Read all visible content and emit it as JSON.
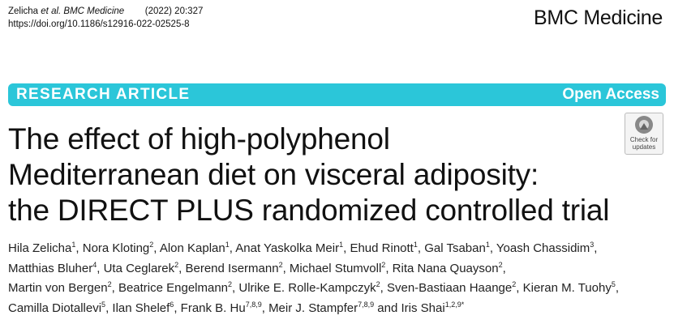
{
  "citation": {
    "author": "Zelicha",
    "journal": "et al. BMC Medicine",
    "year_volume": "(2022) 20:327",
    "doi": "https://doi.org/10.1186/s12916-022-02525-8"
  },
  "journal_logo": "BMC Medicine",
  "banner": {
    "article_type": "RESEARCH ARTICLE",
    "access": "Open Access"
  },
  "badge": "Check for updates",
  "title_lines": [
    "The effect of high-polyphenol",
    "Mediterranean diet on visceral adiposity:",
    "the DIRECT PLUS randomized controlled trial"
  ],
  "author_lines": [
    [
      {
        "name": "Hila Zelicha",
        "aff": "1",
        "after": ", "
      },
      {
        "name": "Nora Kloting",
        "aff": "2",
        "after": ", "
      },
      {
        "name": "Alon Kaplan",
        "aff": "1",
        "after": ", "
      },
      {
        "name": "Anat Yaskolka Meir",
        "aff": "1",
        "after": ", "
      },
      {
        "name": "Ehud Rinott",
        "aff": "1",
        "after": ", "
      },
      {
        "name": "Gal Tsaban",
        "aff": "1",
        "after": ", "
      },
      {
        "name": "Yoash Chassidim",
        "aff": "3",
        "after": ","
      }
    ],
    [
      {
        "name": "Matthias Bluher",
        "aff": "4",
        "after": ", "
      },
      {
        "name": "Uta Ceglarek",
        "aff": "2",
        "after": ", "
      },
      {
        "name": "Berend Isermann",
        "aff": "2",
        "after": ", "
      },
      {
        "name": "Michael Stumvoll",
        "aff": "2",
        "after": ", "
      },
      {
        "name": "Rita Nana Quayson",
        "aff": "2",
        "after": ","
      }
    ],
    [
      {
        "name": "Martin von Bergen",
        "aff": "2",
        "after": ", "
      },
      {
        "name": "Beatrice Engelmann",
        "aff": "2",
        "after": ", "
      },
      {
        "name": "Ulrike E. Rolle-Kampczyk",
        "aff": "2",
        "after": ", "
      },
      {
        "name": "Sven-Bastiaan Haange",
        "aff": "2",
        "after": ", "
      },
      {
        "name": "Kieran M. Tuohy",
        "aff": "5",
        "after": ","
      }
    ],
    [
      {
        "name": "Camilla Diotallevi",
        "aff": "5",
        "after": ", "
      },
      {
        "name": "Ilan Shelef",
        "aff": "6",
        "after": ", "
      },
      {
        "name": "Frank B. Hu",
        "aff": "7,8,9",
        "after": ", "
      },
      {
        "name": "Meir J. Stampfer",
        "aff": "7,8,9",
        "after": " and "
      },
      {
        "name": "Iris Shai",
        "aff": "1,2,9*"
      }
    ]
  ]
}
